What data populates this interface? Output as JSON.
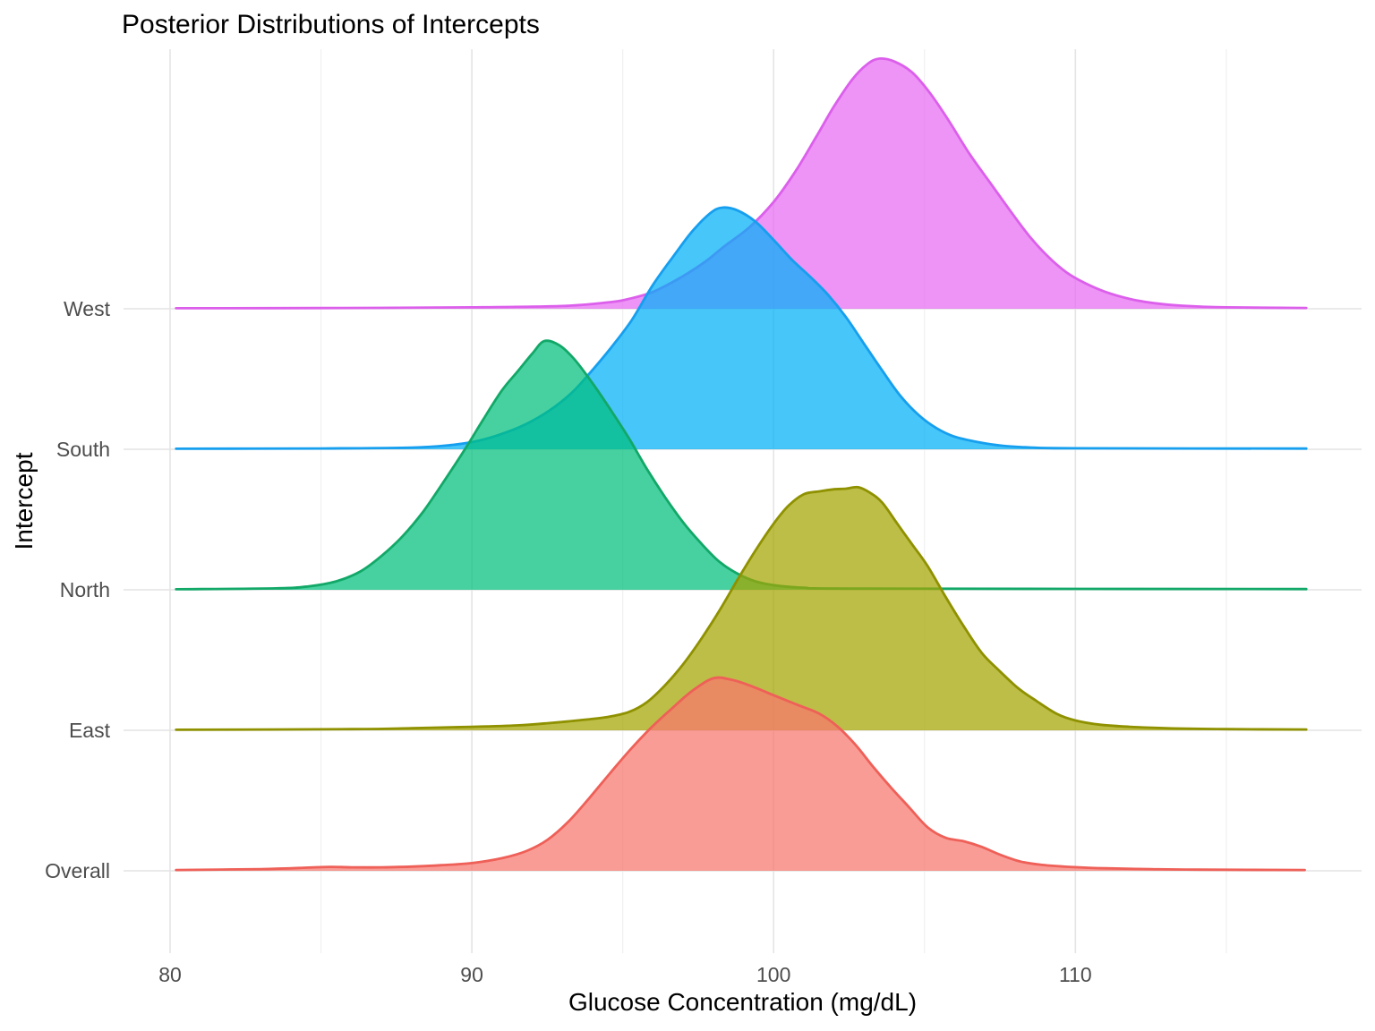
{
  "title": "Posterior Distributions of Intercepts",
  "text_colors": {
    "title": "#000000",
    "axis_title": "#000000",
    "tick_label": "#4D4D4D"
  },
  "chart_data": {
    "type": "area",
    "variant": "ridgeline-density",
    "title": "Posterior Distributions of Intercepts",
    "xlabel": "Glucose Concentration (mg/dL)",
    "ylabel": "Intercept",
    "x_ticks": [
      80,
      90,
      100,
      110
    ],
    "x_minor_ticks": [
      85,
      95,
      105,
      115
    ],
    "xlim": [
      78.2,
      119.5
    ],
    "x_data_range": [
      80.2,
      117.65
    ],
    "categories_bottom_to_top": [
      "Overall",
      "East",
      "North",
      "South",
      "West"
    ],
    "legend_position": "none",
    "grid": {
      "major_color": "#E4E4E4",
      "minor_color": "#F0F0F0",
      "horizontal_at_categories": true
    },
    "fill_opacity": 0.72,
    "height_units": "category_row_spacing",
    "series": [
      {
        "name": "West",
        "row": 4,
        "stroke": "#DC5FEC",
        "fill": "#E76BF3",
        "peak_x": 103.5,
        "peak_height": 1.78,
        "x": [
          80.2,
          85,
          90,
          93,
          94.5,
          95.2,
          96,
          96.9,
          97.7,
          98.4,
          99.2,
          100,
          100.7,
          101.4,
          102,
          102.6,
          103.1,
          103.5,
          104,
          104.6,
          105.2,
          105.8,
          106.5,
          107.2,
          107.9,
          108.5,
          109.1,
          109.7,
          110.3,
          111,
          111.8,
          112.6,
          113.5,
          115,
          117.65
        ],
        "h": [
          0.004,
          0.005,
          0.01,
          0.02,
          0.045,
          0.07,
          0.12,
          0.22,
          0.33,
          0.45,
          0.58,
          0.76,
          0.97,
          1.22,
          1.44,
          1.63,
          1.74,
          1.78,
          1.76,
          1.68,
          1.53,
          1.34,
          1.1,
          0.89,
          0.68,
          0.51,
          0.37,
          0.26,
          0.185,
          0.12,
          0.07,
          0.04,
          0.022,
          0.01,
          0.006
        ]
      },
      {
        "name": "South",
        "row": 3,
        "stroke": "#169FEF",
        "fill": "#00B0F6",
        "peak_x": 98.3,
        "peak_height": 1.72,
        "x": [
          80.2,
          85,
          88,
          89.3,
          90.2,
          91,
          91.8,
          92.6,
          93.3,
          93.9,
          94.6,
          95.3,
          96,
          96.7,
          97.3,
          97.9,
          98.3,
          98.8,
          99.4,
          100,
          100.6,
          101.2,
          101.8,
          102.4,
          103,
          103.6,
          104.2,
          104.8,
          105.4,
          106,
          106.8,
          107.6,
          108.5,
          110,
          117.65
        ],
        "h": [
          0.004,
          0.006,
          0.012,
          0.03,
          0.06,
          0.11,
          0.18,
          0.28,
          0.4,
          0.54,
          0.72,
          0.92,
          1.17,
          1.38,
          1.55,
          1.68,
          1.72,
          1.7,
          1.62,
          1.49,
          1.35,
          1.23,
          1.1,
          0.94,
          0.75,
          0.56,
          0.38,
          0.245,
          0.15,
          0.09,
          0.05,
          0.025,
          0.013,
          0.007,
          0.005
        ]
      },
      {
        "name": "North",
        "row": 2,
        "stroke": "#12A868",
        "fill": "#00BF7D",
        "peak_x": 92.4,
        "peak_height": 1.77,
        "x": [
          80.2,
          83.5,
          84.6,
          85.5,
          86.3,
          87,
          87.7,
          88.4,
          89.1,
          89.8,
          90.4,
          91,
          91.5,
          92,
          92.4,
          92.9,
          93.4,
          94,
          94.6,
          95.2,
          95.8,
          96.4,
          97,
          97.6,
          98.2,
          98.8,
          99.4,
          100.1,
          101,
          103,
          117.65
        ],
        "h": [
          0.004,
          0.01,
          0.025,
          0.06,
          0.13,
          0.24,
          0.38,
          0.56,
          0.78,
          1.01,
          1.22,
          1.42,
          1.55,
          1.68,
          1.77,
          1.74,
          1.64,
          1.47,
          1.28,
          1.08,
          0.86,
          0.66,
          0.48,
          0.33,
          0.2,
          0.115,
          0.06,
          0.03,
          0.015,
          0.008,
          0.005
        ]
      },
      {
        "name": "East",
        "row": 1,
        "stroke": "#8F9100",
        "fill": "#A3A500",
        "peak_x": 102.8,
        "peak_height": 1.73,
        "x": [
          80.2,
          86,
          88,
          90,
          91.5,
          92.5,
          93.5,
          94.5,
          95.2,
          95.8,
          96.4,
          97,
          97.6,
          98.2,
          98.8,
          99.4,
          100,
          100.5,
          101,
          101.5,
          102,
          102.4,
          102.8,
          103.2,
          103.6,
          104.1,
          104.6,
          105.1,
          105.7,
          106.3,
          106.9,
          107.5,
          108.1,
          108.7,
          109.4,
          110,
          110.8,
          111.8,
          113,
          115,
          117.65
        ],
        "h": [
          0.004,
          0.008,
          0.015,
          0.025,
          0.035,
          0.05,
          0.07,
          0.095,
          0.13,
          0.2,
          0.32,
          0.47,
          0.65,
          0.85,
          1.07,
          1.28,
          1.47,
          1.6,
          1.68,
          1.7,
          1.715,
          1.72,
          1.73,
          1.69,
          1.62,
          1.47,
          1.32,
          1.17,
          0.95,
          0.74,
          0.55,
          0.42,
          0.3,
          0.21,
          0.115,
          0.07,
          0.04,
          0.025,
          0.015,
          0.008,
          0.006
        ]
      },
      {
        "name": "Overall",
        "row": 0,
        "stroke": "#EE6058",
        "fill": "#F8766D",
        "peak_x": 98.0,
        "peak_height": 1.37,
        "x": [
          80.2,
          83,
          84.5,
          85.3,
          86,
          87,
          88,
          89,
          90,
          91,
          91.8,
          92.5,
          93.2,
          93.9,
          94.6,
          95.2,
          95.9,
          96.6,
          97.3,
          98,
          98.6,
          99.2,
          100,
          100.8,
          101.5,
          102.1,
          102.7,
          103.3,
          103.9,
          104.5,
          105.1,
          105.7,
          106.3,
          106.9,
          107.5,
          108.2,
          108.9,
          109.8,
          111,
          112.5,
          114,
          117.6
        ],
        "h": [
          0.006,
          0.012,
          0.022,
          0.028,
          0.025,
          0.025,
          0.03,
          0.04,
          0.055,
          0.09,
          0.14,
          0.22,
          0.35,
          0.52,
          0.7,
          0.85,
          1.01,
          1.15,
          1.28,
          1.37,
          1.36,
          1.32,
          1.25,
          1.18,
          1.12,
          1.03,
          0.9,
          0.74,
          0.59,
          0.45,
          0.31,
          0.235,
          0.21,
          0.17,
          0.115,
          0.065,
          0.042,
          0.028,
          0.018,
          0.012,
          0.008,
          0.006
        ]
      }
    ]
  }
}
